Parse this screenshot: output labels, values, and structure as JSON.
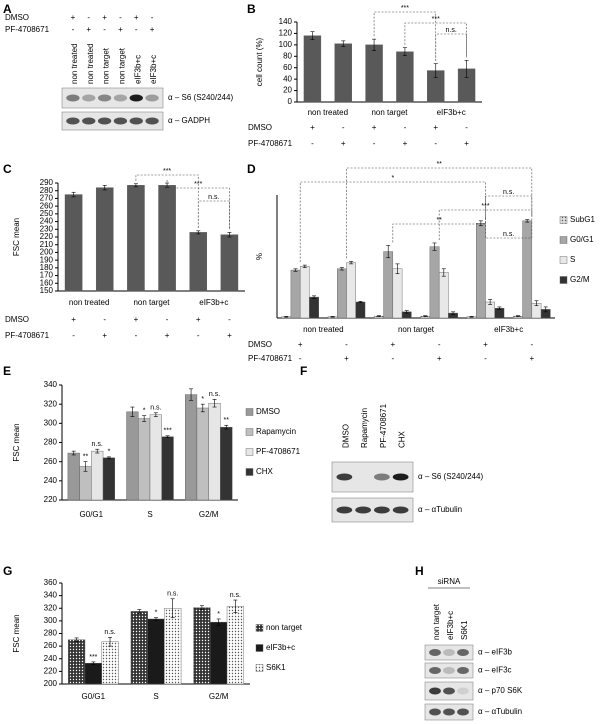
{
  "panel_labels": [
    "A",
    "B",
    "C",
    "D",
    "E",
    "F",
    "G",
    "H"
  ],
  "chart_data": [
    {
      "type": "bar",
      "ylabel": "cell count (%)",
      "groups": [
        "non treated",
        "non target",
        "eIF3b+c"
      ],
      "values": [
        116,
        102,
        100,
        88,
        55,
        58
      ],
      "errors": [
        7,
        5,
        10,
        7,
        12,
        15
      ],
      "color": "#595959",
      "ylim": [
        0,
        140
      ],
      "yticks": [
        0,
        20,
        40,
        60,
        80,
        100,
        120,
        140
      ],
      "conditions": [
        {
          "name": "DMSO",
          "marks": [
            "+",
            "-",
            "+",
            "-",
            "+",
            "-"
          ]
        },
        {
          "name": "PF-4708671",
          "marks": [
            "-",
            "+",
            "-",
            "+",
            "-",
            "+"
          ]
        }
      ],
      "annotations": [
        {
          "text": "***",
          "pair": [
            2,
            4
          ]
        },
        {
          "text": "***",
          "pair": [
            3,
            5
          ]
        },
        {
          "text": "n.s.",
          "pair": [
            4,
            5
          ]
        }
      ]
    },
    {
      "type": "bar",
      "ylabel": "FSC mean",
      "groups": [
        "non treated",
        "non target",
        "eIF3b+c"
      ],
      "values": [
        275,
        284,
        287,
        287,
        226,
        223
      ],
      "errors": [
        3,
        3,
        2,
        3,
        2,
        3
      ],
      "color": "#595959",
      "ylim": [
        150,
        290
      ],
      "yticks": [
        150,
        160,
        170,
        180,
        190,
        200,
        210,
        220,
        230,
        240,
        250,
        260,
        270,
        280,
        290
      ],
      "conditions": [
        {
          "name": "DMSO",
          "marks": [
            "+",
            "-",
            "+",
            "-",
            "+",
            "-"
          ]
        },
        {
          "name": "PF-4708671",
          "marks": [
            "-",
            "+",
            "-",
            "+",
            "-",
            "+"
          ]
        }
      ],
      "annotations": [
        {
          "text": "***",
          "pair": [
            2,
            4
          ]
        },
        {
          "text": "***",
          "pair": [
            3,
            5
          ]
        },
        {
          "text": "n.s.",
          "pair": [
            4,
            5
          ]
        }
      ]
    },
    {
      "type": "bar",
      "ylabel": "%",
      "groups": [
        "non treated",
        "non target",
        "eIF3b+c"
      ],
      "ylim": [
        0,
        100
      ],
      "series": [
        {
          "name": "SubG1",
          "color": "#e0e0e0",
          "pattern": "dots",
          "values": [
            1,
            1,
            1.5,
            1.5,
            1,
            1.5
          ],
          "errors": [
            0.3,
            0.3,
            0.4,
            0.4,
            0.3,
            0.4
          ]
        },
        {
          "name": "G0/G1",
          "color": "#a6a6a6",
          "values": [
            39,
            40,
            54,
            58,
            77,
            79
          ],
          "errors": [
            1,
            1,
            5,
            3,
            2,
            1
          ]
        },
        {
          "name": "S",
          "color": "#e8e8e8",
          "values": [
            42,
            45,
            40,
            37,
            13,
            12
          ],
          "errors": [
            1,
            1,
            4,
            3,
            2,
            2
          ]
        },
        {
          "name": "G2/M",
          "color": "#333333",
          "values": [
            17,
            13,
            5,
            4,
            8,
            7
          ],
          "errors": [
            1,
            0.5,
            1,
            1,
            1,
            2
          ]
        }
      ],
      "conditions": [
        {
          "name": "DMSO",
          "marks": [
            "+",
            "-",
            "+",
            "-",
            "+",
            "-"
          ]
        },
        {
          "name": "PF-4708671",
          "marks": [
            "-",
            "+",
            "-",
            "+",
            "-",
            "+"
          ]
        }
      ],
      "annotations": [
        {
          "text": "**",
          "pair": [
            1,
            5
          ]
        },
        {
          "text": "*",
          "pair": [
            0,
            4
          ]
        },
        {
          "text": "n.s.",
          "pair": [
            4,
            5
          ]
        },
        {
          "text": "***",
          "pair": [
            3,
            5
          ]
        },
        {
          "text": "**",
          "pair": [
            2,
            4
          ]
        },
        {
          "text": "n.s.",
          "pair": [
            4,
            5
          ]
        }
      ]
    },
    {
      "type": "bar",
      "ylabel": "FSC mean",
      "categories": [
        "G0/G1",
        "S",
        "G2/M"
      ],
      "ylim": [
        220,
        340
      ],
      "yticks": [
        220,
        240,
        260,
        280,
        300,
        320,
        340
      ],
      "series": [
        {
          "name": "DMSO",
          "color": "#999999",
          "values": [
            269,
            312,
            330
          ],
          "errors": [
            2,
            5,
            6
          ]
        },
        {
          "name": "Rapamycin",
          "color": "#bfbfbf",
          "values": [
            255,
            305,
            316
          ],
          "errors": [
            5,
            3,
            4
          ],
          "significance": [
            "**",
            "*",
            "*"
          ]
        },
        {
          "name": "PF-4708671",
          "color": "#e6e6e6",
          "values": [
            271,
            309,
            321
          ],
          "errors": [
            2,
            2,
            4
          ],
          "significance": [
            "n.s.",
            "n.s.",
            "n.s."
          ]
        },
        {
          "name": "CHX",
          "color": "#333333",
          "values": [
            264,
            286,
            296
          ],
          "errors": [
            1,
            1,
            2
          ],
          "significance": [
            "*",
            "***",
            "**"
          ]
        }
      ]
    },
    {
      "type": "bar",
      "ylabel": "FSC mean",
      "categories": [
        "G0/G1",
        "S",
        "G2/M"
      ],
      "ylim": [
        200,
        360
      ],
      "yticks": [
        200,
        220,
        240,
        260,
        280,
        300,
        320,
        340,
        360
      ],
      "series": [
        {
          "name": "non target",
          "color": "#333333",
          "pattern": "dots",
          "values": [
            270,
            315,
            321
          ],
          "errors": [
            3,
            3,
            3
          ]
        },
        {
          "name": "eIF3b+c",
          "color": "#1a1a1a",
          "values": [
            233,
            303,
            298
          ],
          "errors": [
            2,
            2,
            5
          ],
          "significance": [
            "***",
            "*",
            "*"
          ]
        },
        {
          "name": "S6K1",
          "color": "#ffffff",
          "pattern": "dots",
          "values": [
            267,
            320,
            323
          ],
          "errors": [
            7,
            15,
            10
          ],
          "significance": [
            "n.s.",
            "n.s.",
            "n.s."
          ]
        }
      ]
    }
  ],
  "blot_A": {
    "rows": [
      {
        "name": "DMSO",
        "marks": [
          "+",
          "-",
          "+",
          "-",
          "+",
          "-"
        ]
      },
      {
        "name": "PF-4708671",
        "marks": [
          "-",
          "+",
          "-",
          "+",
          "-",
          "+"
        ]
      }
    ],
    "lanes": [
      "non treated",
      "non treated",
      "non target",
      "non target",
      "eIF3b+c",
      "eIF3b+c"
    ],
    "bands": [
      "α – S6  (S240/244)",
      "α – GADPH"
    ]
  },
  "blot_F": {
    "lanes": [
      "DMSO",
      "Rapamycin",
      "PF-4708671",
      "CHX"
    ],
    "bands": [
      "α – S6  (S240/244)",
      "α – αTubulin"
    ]
  },
  "blot_H": {
    "title": "siRNA",
    "lanes": [
      "non target",
      "eIF3b+c",
      "S6K1"
    ],
    "bands": [
      "α – eIF3b",
      "α – eIF3c",
      "α – p70 S6K",
      "α – αTubulin"
    ]
  }
}
